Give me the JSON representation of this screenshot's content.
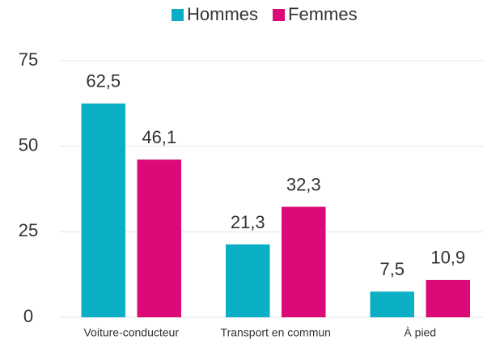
{
  "chart_data": {
    "type": "bar",
    "categories": [
      "Voiture-conducteur",
      "Transport en commun",
      "À pied"
    ],
    "series": [
      {
        "name": "Hommes",
        "color": "#0aafc6",
        "values": [
          62.5,
          21.3,
          7.5
        ],
        "value_labels": [
          "62,5",
          "21,3",
          "7,5"
        ]
      },
      {
        "name": "Femmes",
        "color": "#dc0a78",
        "values": [
          46.1,
          32.3,
          10.9
        ],
        "value_labels": [
          "46,1",
          "32,3",
          "10,9"
        ]
      }
    ],
    "ylim": [
      0,
      75
    ],
    "yticks": [
      0,
      25,
      50,
      75
    ],
    "grid": true,
    "legend": "top"
  }
}
